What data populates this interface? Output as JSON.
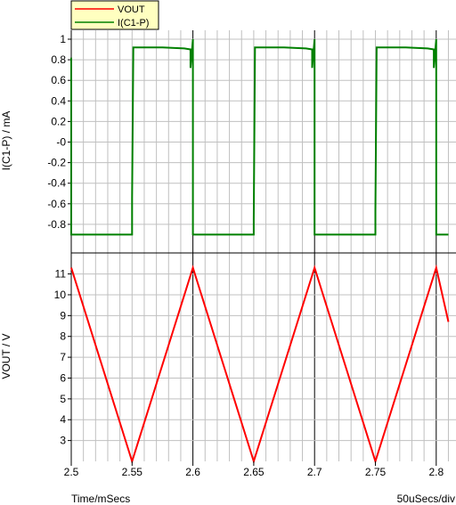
{
  "chart_data": [
    {
      "type": "line",
      "ylabel": "I(C1-P) / mA",
      "ylim": [
        -0.9,
        1.0
      ],
      "yticks": [
        1,
        0.8,
        0.6,
        0.4,
        0.2,
        0,
        -0.2,
        -0.4,
        -0.6,
        -0.8
      ],
      "ytick_labels": [
        "1",
        "0.8",
        "0.6",
        "0.4",
        "0.2",
        "-0",
        "-0.2",
        "-0.4",
        "-0.6",
        "-0.8"
      ],
      "xlim": [
        2.5,
        2.81
      ],
      "grid": true,
      "series": [
        {
          "name": "I(C1-P)",
          "color": "#008000",
          "x": [
            2.5,
            2.5,
            2.55,
            2.55,
            2.551,
            2.575,
            2.593,
            2.598,
            2.598,
            2.6,
            2.6,
            2.65,
            2.65,
            2.651,
            2.675,
            2.693,
            2.698,
            2.698,
            2.7,
            2.7,
            2.75,
            2.75,
            2.751,
            2.775,
            2.793,
            2.798,
            2.798,
            2.8,
            2.8,
            2.81
          ],
          "values": [
            0.82,
            -0.9,
            -0.9,
            -0.55,
            0.92,
            0.92,
            0.91,
            0.9,
            0.72,
            1.0,
            -0.9,
            -0.9,
            -0.75,
            0.92,
            0.92,
            0.91,
            0.9,
            0.72,
            1.0,
            -0.9,
            -0.9,
            -0.67,
            0.92,
            0.92,
            0.91,
            0.9,
            0.72,
            1.0,
            -0.9,
            -0.9
          ]
        }
      ]
    },
    {
      "type": "line",
      "ylabel": "VOUT / V",
      "xlabel": "Time/mSecs",
      "ylim": [
        2.0,
        11.6
      ],
      "yticks": [
        11,
        10,
        9,
        8,
        7,
        6,
        5,
        4,
        3
      ],
      "ytick_labels": [
        "11",
        "10",
        "9",
        "8",
        "7",
        "6",
        "5",
        "4",
        "3"
      ],
      "xlim": [
        2.5,
        2.81
      ],
      "xticks": [
        2.5,
        2.55,
        2.6,
        2.65,
        2.7,
        2.75,
        2.8
      ],
      "xtick_labels": [
        "2.5",
        "2.55",
        "2.6",
        "2.65",
        "2.7",
        "2.75",
        "2.8"
      ],
      "grid": true,
      "series": [
        {
          "name": "VOUT",
          "color": "#ff0000",
          "x": [
            2.5,
            2.55,
            2.6,
            2.65,
            2.7,
            2.75,
            2.8,
            2.81
          ],
          "values": [
            11.3,
            2.0,
            11.3,
            2.0,
            11.3,
            2.0,
            11.3,
            8.7
          ]
        }
      ]
    }
  ],
  "legend": [
    {
      "label": "VOUT",
      "color": "#ff0000"
    },
    {
      "label": "I(C1-P)",
      "color": "#008000"
    }
  ],
  "footer": {
    "xlabel": "Time/mSecs",
    "scale": "50uSecs/div"
  },
  "colors": {
    "background": "#ffffff",
    "legend_bg": "#ffffc0",
    "major_grid": "#000000",
    "minor_grid": "#c0c0c0"
  }
}
